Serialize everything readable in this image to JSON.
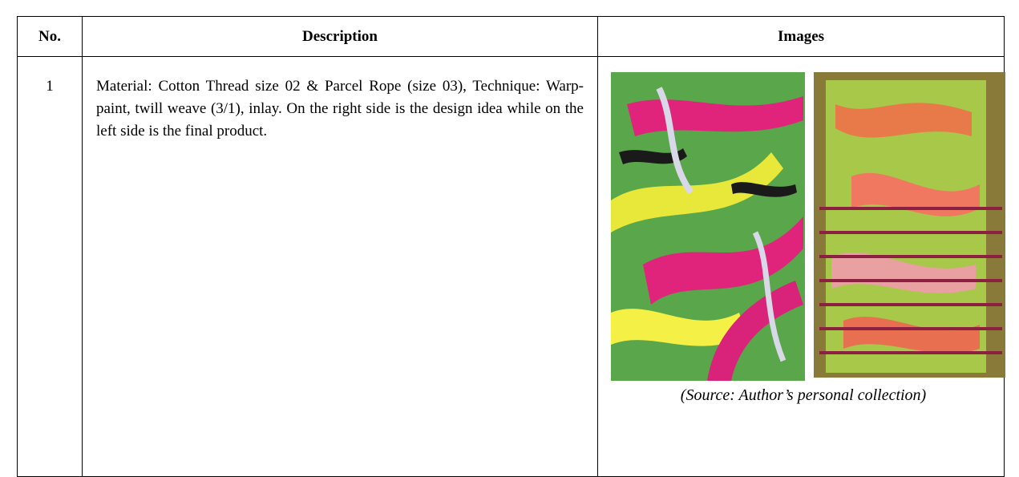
{
  "table": {
    "headers": [
      "No.",
      "Description",
      "Images"
    ],
    "rows": [
      {
        "no": "1",
        "description": "Material: Cotton Thread size 02 & Parcel Rope (size 03), Technique: Warp-paint, twill weave (3/1), inlay. On the right side is the design idea while on the left side is the final product.",
        "caption": "(Source: Author’s personal collection)"
      }
    ]
  }
}
